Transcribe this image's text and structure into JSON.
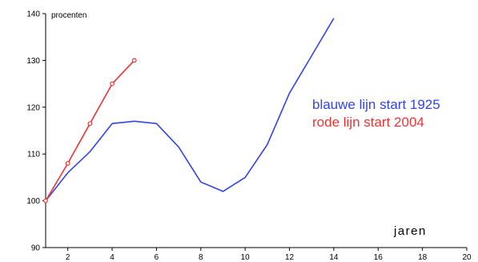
{
  "chart_data": {
    "type": "line",
    "title": "",
    "ylabel": "procenten",
    "xlabel": "jaren",
    "xlim": [
      1,
      20
    ],
    "ylim": [
      90,
      140
    ],
    "x_ticks": [
      2,
      4,
      6,
      8,
      10,
      12,
      14,
      16,
      18,
      20
    ],
    "y_ticks": [
      90,
      100,
      110,
      120,
      130,
      140
    ],
    "grid": false,
    "legend_position": "right",
    "series": [
      {
        "name": "blauwe lijn start 1925",
        "color": "#3344ee",
        "markers": false,
        "x": [
          1,
          2,
          3,
          4,
          5,
          6,
          7,
          8,
          9,
          10,
          11,
          12,
          13,
          14
        ],
        "y": [
          100,
          106,
          110.5,
          116.5,
          117,
          116.5,
          111.5,
          104,
          102,
          105,
          112,
          123,
          131,
          139
        ]
      },
      {
        "name": "rode lijn start 2004",
        "color": "#ee3333",
        "markers": true,
        "x": [
          1,
          2,
          3,
          4,
          5
        ],
        "y": [
          100,
          108,
          116.5,
          125,
          130
        ]
      }
    ]
  }
}
